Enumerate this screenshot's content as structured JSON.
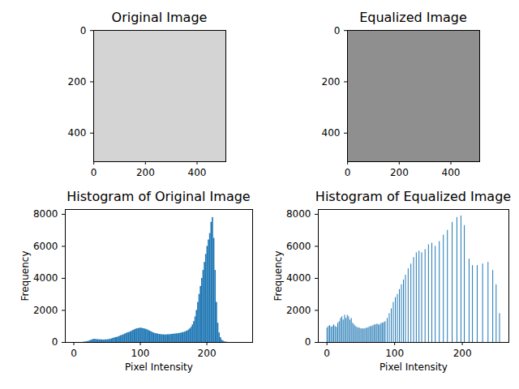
{
  "chart_data": [
    {
      "type": "image",
      "title": "Original Image",
      "xlim": [
        -0.5,
        511.5
      ],
      "ylim": [
        511.5,
        -0.5
      ],
      "xticks": [
        0,
        200,
        400
      ],
      "yticks": [
        0,
        200,
        400
      ]
    },
    {
      "type": "image",
      "title": "Equalized Image",
      "xlim": [
        -0.5,
        511.5
      ],
      "ylim": [
        511.5,
        -0.5
      ],
      "xticks": [
        0,
        200,
        400
      ],
      "yticks": [
        0,
        200,
        400
      ]
    },
    {
      "type": "histogram",
      "title": "Histogram of Original Image",
      "xlabel": "Pixel Intensity",
      "ylabel": "Frequency",
      "color": "#1f77b4",
      "bins": [
        14,
        16,
        18,
        20,
        22,
        24,
        26,
        28,
        30,
        32,
        34,
        36,
        38,
        40,
        42,
        44,
        46,
        48,
        50,
        52,
        54,
        56,
        58,
        60,
        62,
        64,
        66,
        68,
        70,
        72,
        74,
        76,
        78,
        80,
        82,
        84,
        86,
        88,
        90,
        92,
        94,
        96,
        98,
        100,
        102,
        104,
        106,
        108,
        110,
        112,
        114,
        116,
        118,
        120,
        122,
        124,
        126,
        128,
        130,
        132,
        134,
        136,
        138,
        140,
        142,
        144,
        146,
        148,
        150,
        152,
        154,
        156,
        158,
        160,
        162,
        164,
        166,
        168,
        170,
        172,
        174,
        176,
        178,
        180,
        182,
        184,
        186,
        188,
        190,
        192,
        194,
        196,
        198,
        200,
        202,
        204,
        206,
        208,
        210,
        212,
        214,
        216,
        218,
        220,
        222,
        224,
        226,
        228,
        230,
        232
      ],
      "values": [
        20,
        30,
        40,
        60,
        80,
        120,
        150,
        180,
        200,
        190,
        180,
        170,
        170,
        160,
        160,
        150,
        160,
        160,
        170,
        180,
        200,
        220,
        250,
        280,
        300,
        320,
        340,
        380,
        420,
        450,
        480,
        520,
        560,
        600,
        620,
        650,
        700,
        740,
        780,
        820,
        850,
        870,
        880,
        900,
        880,
        860,
        840,
        820,
        780,
        740,
        700,
        660,
        620,
        580,
        560,
        540,
        520,
        500,
        490,
        480,
        480,
        470,
        470,
        480,
        480,
        490,
        500,
        510,
        520,
        530,
        540,
        550,
        560,
        580,
        600,
        620,
        650,
        680,
        720,
        780,
        850,
        950,
        1100,
        1300,
        1600,
        2000,
        2500,
        3000,
        3500,
        4000,
        4500,
        5000,
        5500,
        6000,
        6400,
        6800,
        7500,
        7800,
        6500,
        4500,
        2500,
        1200,
        600,
        300,
        150,
        80,
        40,
        20,
        10
      ],
      "xlim": [
        -12.8,
        268.8
      ],
      "ylim": [
        0,
        8300
      ],
      "xticks": [
        0,
        100,
        200
      ],
      "yticks": [
        0,
        2000,
        4000,
        6000,
        8000
      ]
    },
    {
      "type": "bar",
      "title": "Histogram of Equalized Image",
      "xlabel": "Pixel Intensity",
      "ylabel": "Frequency",
      "color": "#1f77b4",
      "x": [
        0,
        2,
        4,
        6,
        8,
        10,
        12,
        14,
        16,
        18,
        20,
        22,
        24,
        26,
        28,
        30,
        32,
        34,
        36,
        38,
        40,
        42,
        44,
        46,
        48,
        50,
        52,
        54,
        56,
        58,
        60,
        62,
        64,
        66,
        68,
        70,
        72,
        74,
        76,
        78,
        80,
        82,
        84,
        86,
        89,
        92,
        95,
        98,
        101,
        104,
        107,
        110,
        113,
        116,
        120,
        124,
        128,
        132,
        136,
        140,
        145,
        150,
        155,
        160,
        166,
        172,
        178,
        185,
        192,
        198,
        203,
        210,
        215,
        222,
        230,
        238,
        245,
        250,
        255
      ],
      "values": [
        900,
        1000,
        1050,
        950,
        1000,
        1100,
        1000,
        950,
        1200,
        1300,
        1500,
        1600,
        1400,
        1700,
        1500,
        1700,
        1600,
        1400,
        1500,
        1200,
        1100,
        1000,
        950,
        900,
        900,
        850,
        850,
        850,
        850,
        900,
        900,
        950,
        1000,
        1000,
        1050,
        1100,
        1100,
        1150,
        1100,
        1100,
        1200,
        1200,
        1250,
        1300,
        1500,
        1800,
        2100,
        2500,
        2800,
        3000,
        3300,
        3600,
        3900,
        4200,
        4600,
        4900,
        5300,
        5600,
        5700,
        5600,
        5800,
        6100,
        6200,
        6000,
        6300,
        6700,
        7000,
        7500,
        7800,
        7900,
        7300,
        5200,
        4800,
        4800,
        4900,
        5000,
        4500,
        3600,
        1800
      ],
      "xlim": [
        -12.8,
        268.8
      ],
      "ylim": [
        0,
        8300
      ],
      "xticks": [
        0,
        100,
        200
      ],
      "yticks": [
        0,
        2000,
        4000,
        6000,
        8000
      ]
    }
  ]
}
